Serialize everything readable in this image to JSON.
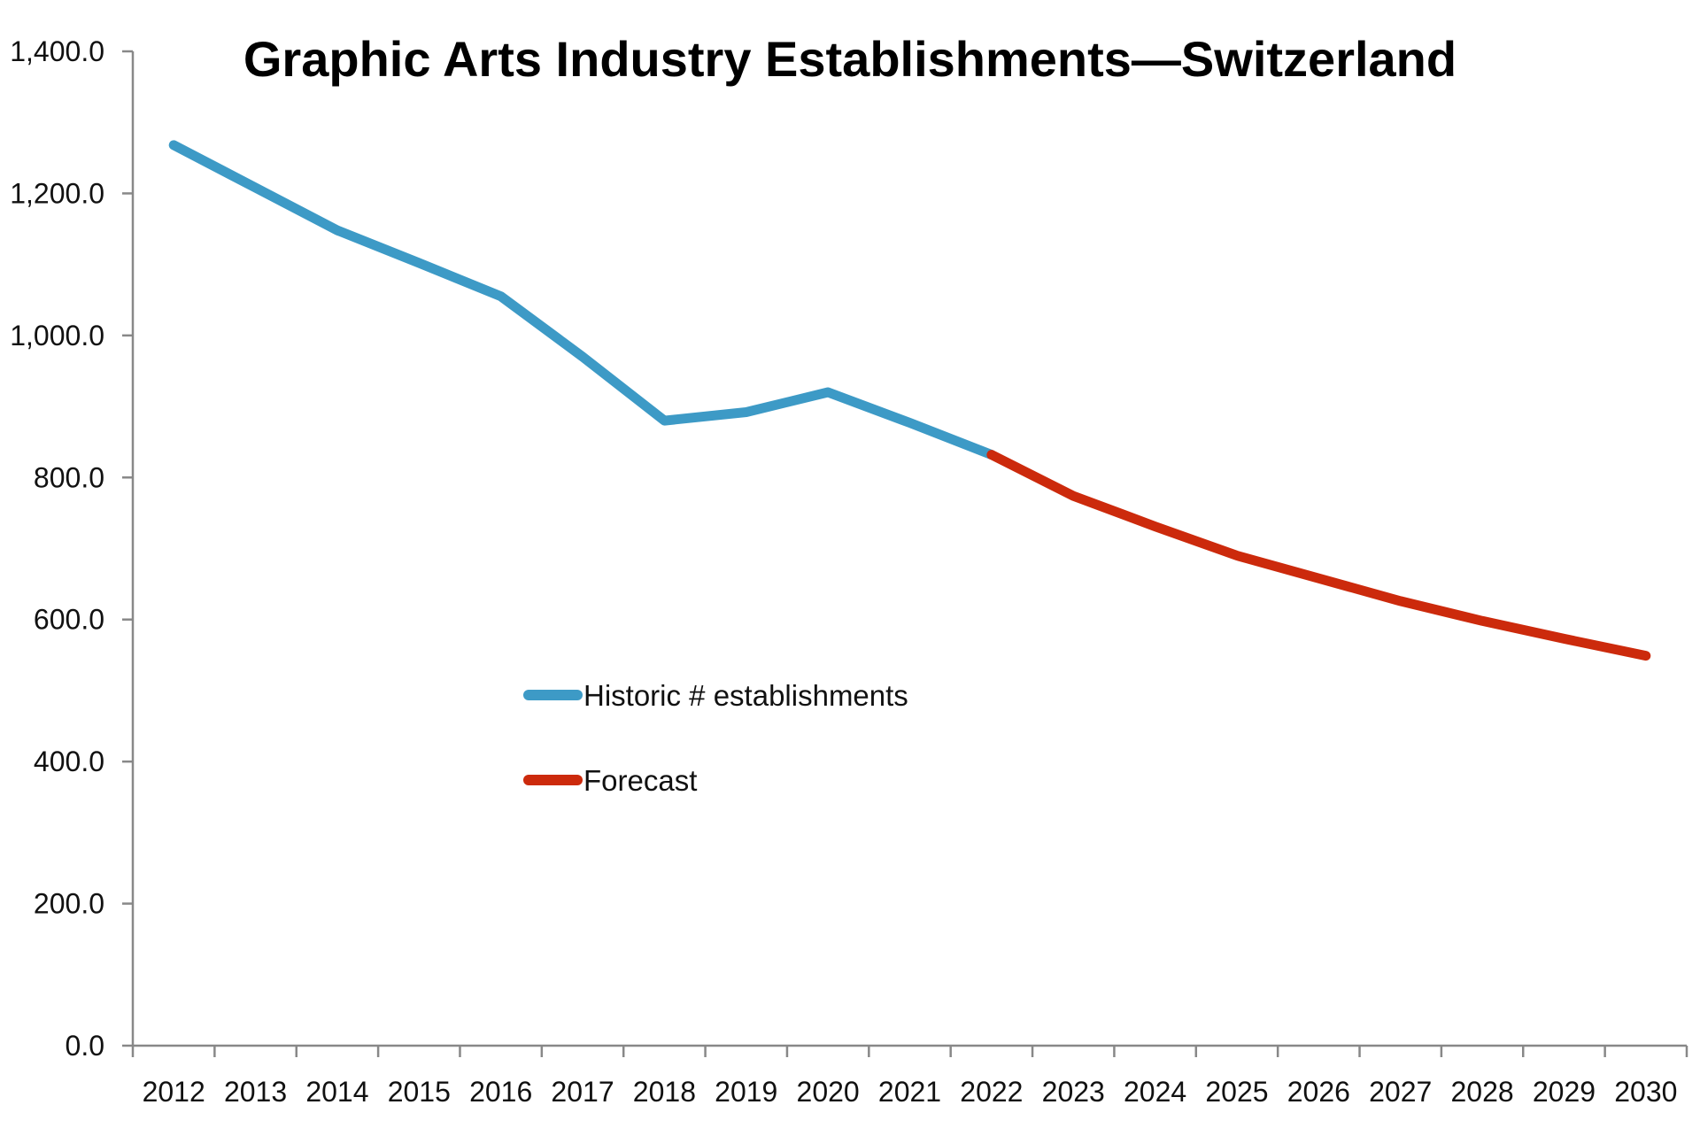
{
  "chart_data": {
    "type": "line",
    "title": "Graphic Arts Industry Establishments—Switzerland",
    "xlabel": "",
    "ylabel": "",
    "ylim": [
      0,
      1400
    ],
    "y_ticks": [
      0,
      200,
      400,
      600,
      800,
      1000,
      1200,
      1400
    ],
    "y_tick_labels": [
      "0.0",
      "200.0",
      "400.0",
      "600.0",
      "800.0",
      "1,000.0",
      "1,200.0",
      "1,400.0"
    ],
    "categories": [
      "2012",
      "2013",
      "2014",
      "2015",
      "2016",
      "2017",
      "2018",
      "2019",
      "2020",
      "2021",
      "2022",
      "2023",
      "2024",
      "2025",
      "2026",
      "2027",
      "2028",
      "2029",
      "2030"
    ],
    "grid": false,
    "legend_position": "center-left",
    "series": [
      {
        "name": "Historic # establishments",
        "color": "#3d9ac6",
        "values": [
          1268,
          1208,
          1148,
          1102,
          1055,
          970,
          880,
          892,
          920,
          877,
          832,
          null,
          null,
          null,
          null,
          null,
          null,
          null,
          null
        ]
      },
      {
        "name": "Forecast",
        "color": "#cc2a0c",
        "values": [
          null,
          null,
          null,
          null,
          null,
          null,
          null,
          null,
          null,
          null,
          832,
          774,
          731,
          690,
          658,
          626,
          598,
          573,
          549
        ]
      }
    ]
  }
}
